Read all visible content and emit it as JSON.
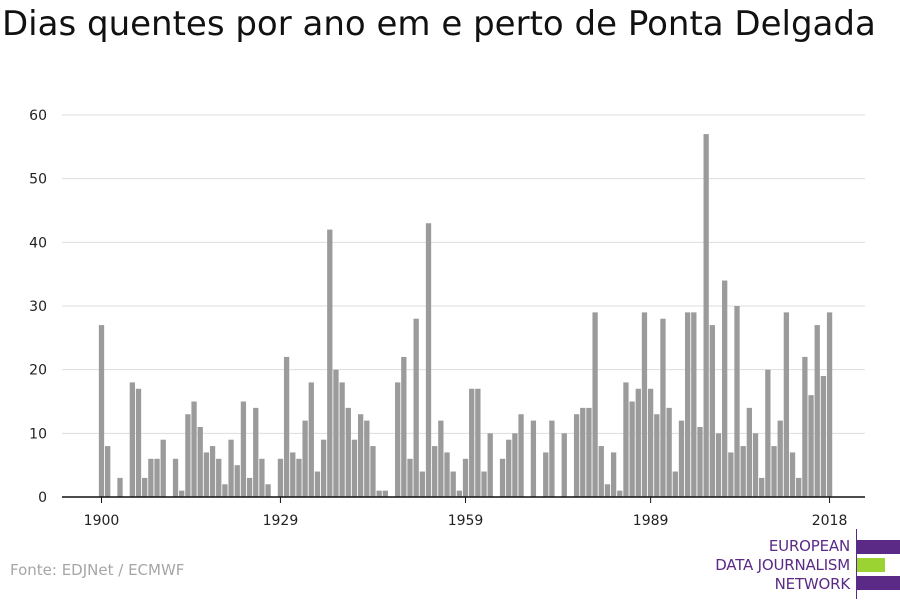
{
  "title": "Dias quentes por ano em e perto de Ponta Delgada",
  "source": "Fonte: EDJNet / ECMWF",
  "logo": {
    "lines": [
      "EUROPEAN",
      "DATA JOURNALISM",
      "NETWORK"
    ],
    "colors": {
      "text": "#5b2a86",
      "primary": "#5b2a86",
      "accent": "#9bd432"
    }
  },
  "colors": {
    "bar": "#9b9b9b",
    "grid": "#dddddd",
    "axis": "#111111"
  },
  "chart_data": {
    "type": "bar",
    "title": "Dias quentes por ano em e perto de Ponta Delgada",
    "xlabel": "",
    "ylabel": "",
    "ylim": [
      0,
      60
    ],
    "yticks": [
      0,
      10,
      20,
      30,
      40,
      50,
      60
    ],
    "xticks": [
      1900,
      1929,
      1959,
      1989,
      2018
    ],
    "grid": true,
    "x": [
      1900,
      1901,
      1902,
      1903,
      1904,
      1905,
      1906,
      1907,
      1908,
      1909,
      1910,
      1911,
      1912,
      1913,
      1914,
      1915,
      1916,
      1917,
      1918,
      1919,
      1920,
      1921,
      1922,
      1923,
      1924,
      1925,
      1926,
      1927,
      1928,
      1929,
      1930,
      1931,
      1932,
      1933,
      1934,
      1935,
      1936,
      1937,
      1938,
      1939,
      1940,
      1941,
      1942,
      1943,
      1944,
      1945,
      1946,
      1947,
      1948,
      1949,
      1950,
      1951,
      1952,
      1953,
      1954,
      1955,
      1956,
      1957,
      1958,
      1959,
      1960,
      1961,
      1962,
      1963,
      1964,
      1965,
      1966,
      1967,
      1968,
      1969,
      1970,
      1971,
      1972,
      1973,
      1974,
      1975,
      1976,
      1977,
      1978,
      1979,
      1980,
      1981,
      1982,
      1983,
      1984,
      1985,
      1986,
      1987,
      1988,
      1989,
      1990,
      1991,
      1992,
      1993,
      1994,
      1995,
      1996,
      1997,
      1998,
      1999,
      2000,
      2001,
      2002,
      2003,
      2004,
      2005,
      2006,
      2007,
      2008,
      2009,
      2010,
      2011,
      2012,
      2013,
      2014,
      2015,
      2016,
      2017,
      2018
    ],
    "values": [
      27,
      8,
      0,
      3,
      0,
      18,
      17,
      3,
      6,
      6,
      9,
      0,
      6,
      1,
      13,
      15,
      11,
      7,
      8,
      6,
      2,
      9,
      5,
      15,
      3,
      14,
      6,
      2,
      0,
      6,
      22,
      7,
      6,
      12,
      18,
      4,
      9,
      42,
      20,
      18,
      14,
      9,
      13,
      12,
      8,
      1,
      1,
      0,
      18,
      22,
      6,
      28,
      4,
      43,
      8,
      12,
      7,
      4,
      1,
      6,
      17,
      17,
      4,
      10,
      0,
      6,
      9,
      10,
      13,
      0,
      12,
      0,
      7,
      12,
      0,
      10,
      0,
      13,
      14,
      14,
      29,
      8,
      2,
      7,
      1,
      18,
      15,
      17,
      29,
      17,
      13,
      28,
      14,
      4,
      12,
      29,
      29,
      11,
      57,
      27,
      10,
      34,
      7,
      30,
      8,
      14,
      10,
      3,
      20,
      8,
      12,
      29,
      7,
      3,
      22,
      16,
      27,
      19,
      29
    ]
  }
}
